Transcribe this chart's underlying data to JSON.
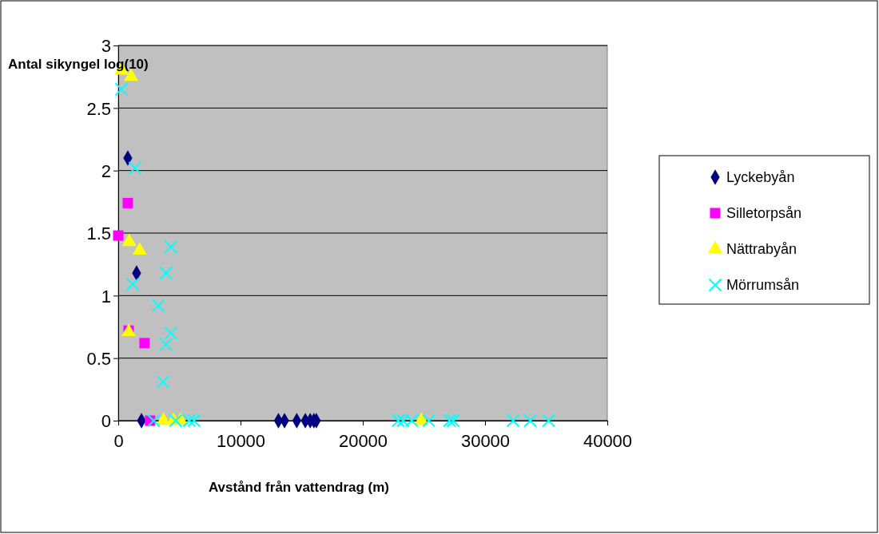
{
  "chart_data": {
    "type": "scatter",
    "xlabel": "Avstånd från  vattendrag (m)",
    "ylabel": "Antal sikyngel log(10)",
    "xlim": [
      0,
      40000
    ],
    "xticks": [
      0,
      10000,
      20000,
      30000,
      40000
    ],
    "ylim": [
      0,
      3
    ],
    "yticks": [
      0,
      0.5,
      1,
      1.5,
      2,
      2.5,
      3
    ],
    "grid": "y",
    "legend": "right",
    "series": [
      {
        "name": "Lyckebyån",
        "color": "#000080",
        "marker": "diamond",
        "x": [
          780,
          1500,
          1900,
          13100,
          13600,
          14600,
          15300,
          15700,
          16000,
          16200
        ],
        "values": [
          2.1,
          1.18,
          0,
          0,
          0,
          0,
          0,
          0,
          0,
          0
        ]
      },
      {
        "name": "Silletorpsån",
        "color": "#ff00ff",
        "marker": "square",
        "x": [
          780,
          0,
          850,
          2150,
          2600
        ],
        "values": [
          1.74,
          1.48,
          0.72,
          0.62,
          0
        ]
      },
      {
        "name": "Nättrabyån",
        "color": "#ffff00",
        "marker": "triangle",
        "x": [
          260,
          1050,
          900,
          1750,
          850,
          3700,
          4500,
          5100,
          24800
        ],
        "values": [
          2.8,
          2.75,
          1.43,
          1.36,
          0.71,
          0,
          0,
          0,
          0
        ]
      },
      {
        "name": "Mörrumsån",
        "color": "#00ffff",
        "marker": "cross",
        "x": [
          260,
          1370,
          4300,
          3900,
          1180,
          3270,
          4300,
          3900,
          3660,
          2900,
          4700,
          5800,
          6200,
          22900,
          23300,
          24000,
          25400,
          27100,
          27400,
          32300,
          33700,
          35200
        ],
        "values": [
          2.65,
          2.02,
          1.39,
          1.18,
          1.09,
          0.92,
          0.7,
          0.61,
          0.31,
          0,
          0,
          0,
          0,
          0,
          0,
          0,
          0,
          0,
          0,
          0,
          0,
          0
        ]
      }
    ]
  }
}
